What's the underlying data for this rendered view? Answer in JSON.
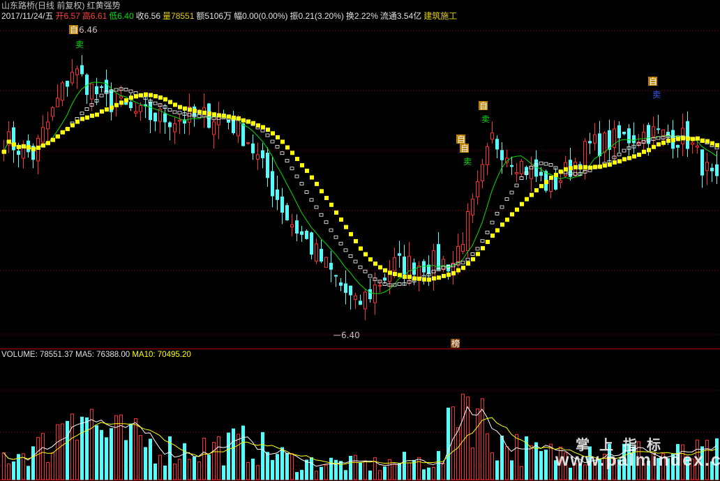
{
  "header": {
    "title": "山东路桥(日线 前复权) 红黄强势",
    "date": "2017/11/24/五",
    "open_label": "开",
    "open": "6.57",
    "high_label": "高",
    "high": "6.61",
    "low_label": "低",
    "low": "6.40",
    "close_label": "收",
    "close": "6.56",
    "volume_label": "量",
    "volume": "78551",
    "amount": "额5106万",
    "change": "幅0.00(0.00%)",
    "amplitude": "振0.21(3.20%)",
    "turnover": "换2.22%",
    "float": "流通3.54亿",
    "sector": "建筑施工"
  },
  "volume_pane": {
    "volume": "VOLUME: 78551.37",
    "ma5": "MA5: 76388.00",
    "ma10": "MA10: 70495.20"
  },
  "markers": {
    "high_price": "6.46",
    "low_price": "6.40",
    "buy": "自",
    "sell": "卖",
    "rank": "榜"
  },
  "watermark": {
    "cn": "掌上指标",
    "url": "www.palmindex.com"
  },
  "colors": {
    "up": "#ff3030",
    "down": "#54fcfc",
    "ma_white": "#ffffff",
    "ma_yellow": "#ffff00",
    "ma_green": "#00e000",
    "grid": "#a00000"
  },
  "chart_data": {
    "type": "candlestick",
    "price_range": [
      6.4,
      9.46
    ],
    "close_anchors": [
      [
        0,
        8.36
      ],
      [
        6,
        8.2
      ],
      [
        14,
        9.07
      ],
      [
        20,
        8.78
      ],
      [
        28,
        8.6
      ],
      [
        35,
        8.57
      ],
      [
        45,
        8.6
      ],
      [
        50,
        8.36
      ],
      [
        58,
        7.58
      ],
      [
        68,
        6.95
      ],
      [
        72,
        6.67
      ],
      [
        75,
        6.81
      ],
      [
        80,
        7.09
      ],
      [
        92,
        7.12
      ],
      [
        96,
        7.66
      ],
      [
        100,
        8.36
      ],
      [
        105,
        8.15
      ],
      [
        112,
        7.87
      ],
      [
        120,
        8.29
      ],
      [
        132,
        8.43
      ],
      [
        140,
        8.36
      ],
      [
        146,
        7.87
      ]
    ],
    "volume_anchors": [
      [
        0,
        40000
      ],
      [
        10,
        60000
      ],
      [
        14,
        150000
      ],
      [
        20,
        80000
      ],
      [
        35,
        50000
      ],
      [
        50,
        60000
      ],
      [
        60,
        30000
      ],
      [
        75,
        25000
      ],
      [
        90,
        35000
      ],
      [
        93,
        160000
      ],
      [
        96,
        130000
      ],
      [
        100,
        70000
      ],
      [
        110,
        40000
      ],
      [
        120,
        55000
      ],
      [
        135,
        40000
      ],
      [
        146,
        45000
      ]
    ],
    "volume_max": 200000
  }
}
